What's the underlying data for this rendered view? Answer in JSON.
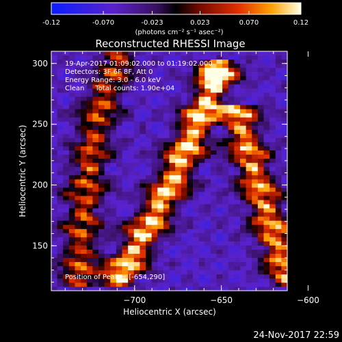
{
  "colorbar": {
    "tick_labels": [
      "-0.12",
      "-0.070",
      "-0.023",
      "0.023",
      "0.070",
      "0.12"
    ],
    "tick_values": [
      -0.12,
      -0.07,
      -0.023,
      0.023,
      0.07,
      0.12
    ],
    "range": [
      -0.12,
      0.12
    ],
    "unit_label": "(photons cm⁻² s⁻¹ asec⁻²)"
  },
  "chart_data": {
    "type": "heatmap",
    "title": "Reconstructed RHESSI Image",
    "xlabel": "Heliocentric X (arcsec)",
    "ylabel": "Heliocentric Y (arcsec)",
    "xlim": [
      -748,
      -612
    ],
    "ylim": [
      113,
      310
    ],
    "x_ticks": [
      -700,
      -650,
      -600
    ],
    "x_tick_labels": [
      "−700",
      "−650",
      "−600"
    ],
    "y_ticks": [
      150,
      200,
      250,
      300
    ],
    "y_tick_labels": [
      "150",
      "200",
      "250",
      "300"
    ],
    "colormap": "hot-blue",
    "annotations": [
      "19-Apr-2017 01:09:02.000 to 01:19:02.000",
      "Detectors: 3F 6F 8F, Att 0",
      "Energy Range: 3.0 - 6.0 keV",
      "Clean     Total counts: 1.90e+04"
    ],
    "peak_label": "Position of Peak = [-654,290]",
    "peak": [
      -654,
      290
    ],
    "ridges": [
      {
        "x_values": [
          -733,
          -728,
          -720,
          -710
        ],
        "y_values": [
          115,
          200,
          265,
          300
        ],
        "level": 0.05
      },
      {
        "x_values": [
          -712,
          -680,
          -652
        ],
        "y_values": [
          115,
          198,
          290
        ],
        "level": 0.11
      },
      {
        "x_values": [
          -610,
          -623,
          -633,
          -640
        ],
        "y_values": [
          115,
          175,
          220,
          255
        ],
        "level": 0.085
      }
    ]
  },
  "footer": {
    "date": "24-Nov-2017 22:59"
  }
}
